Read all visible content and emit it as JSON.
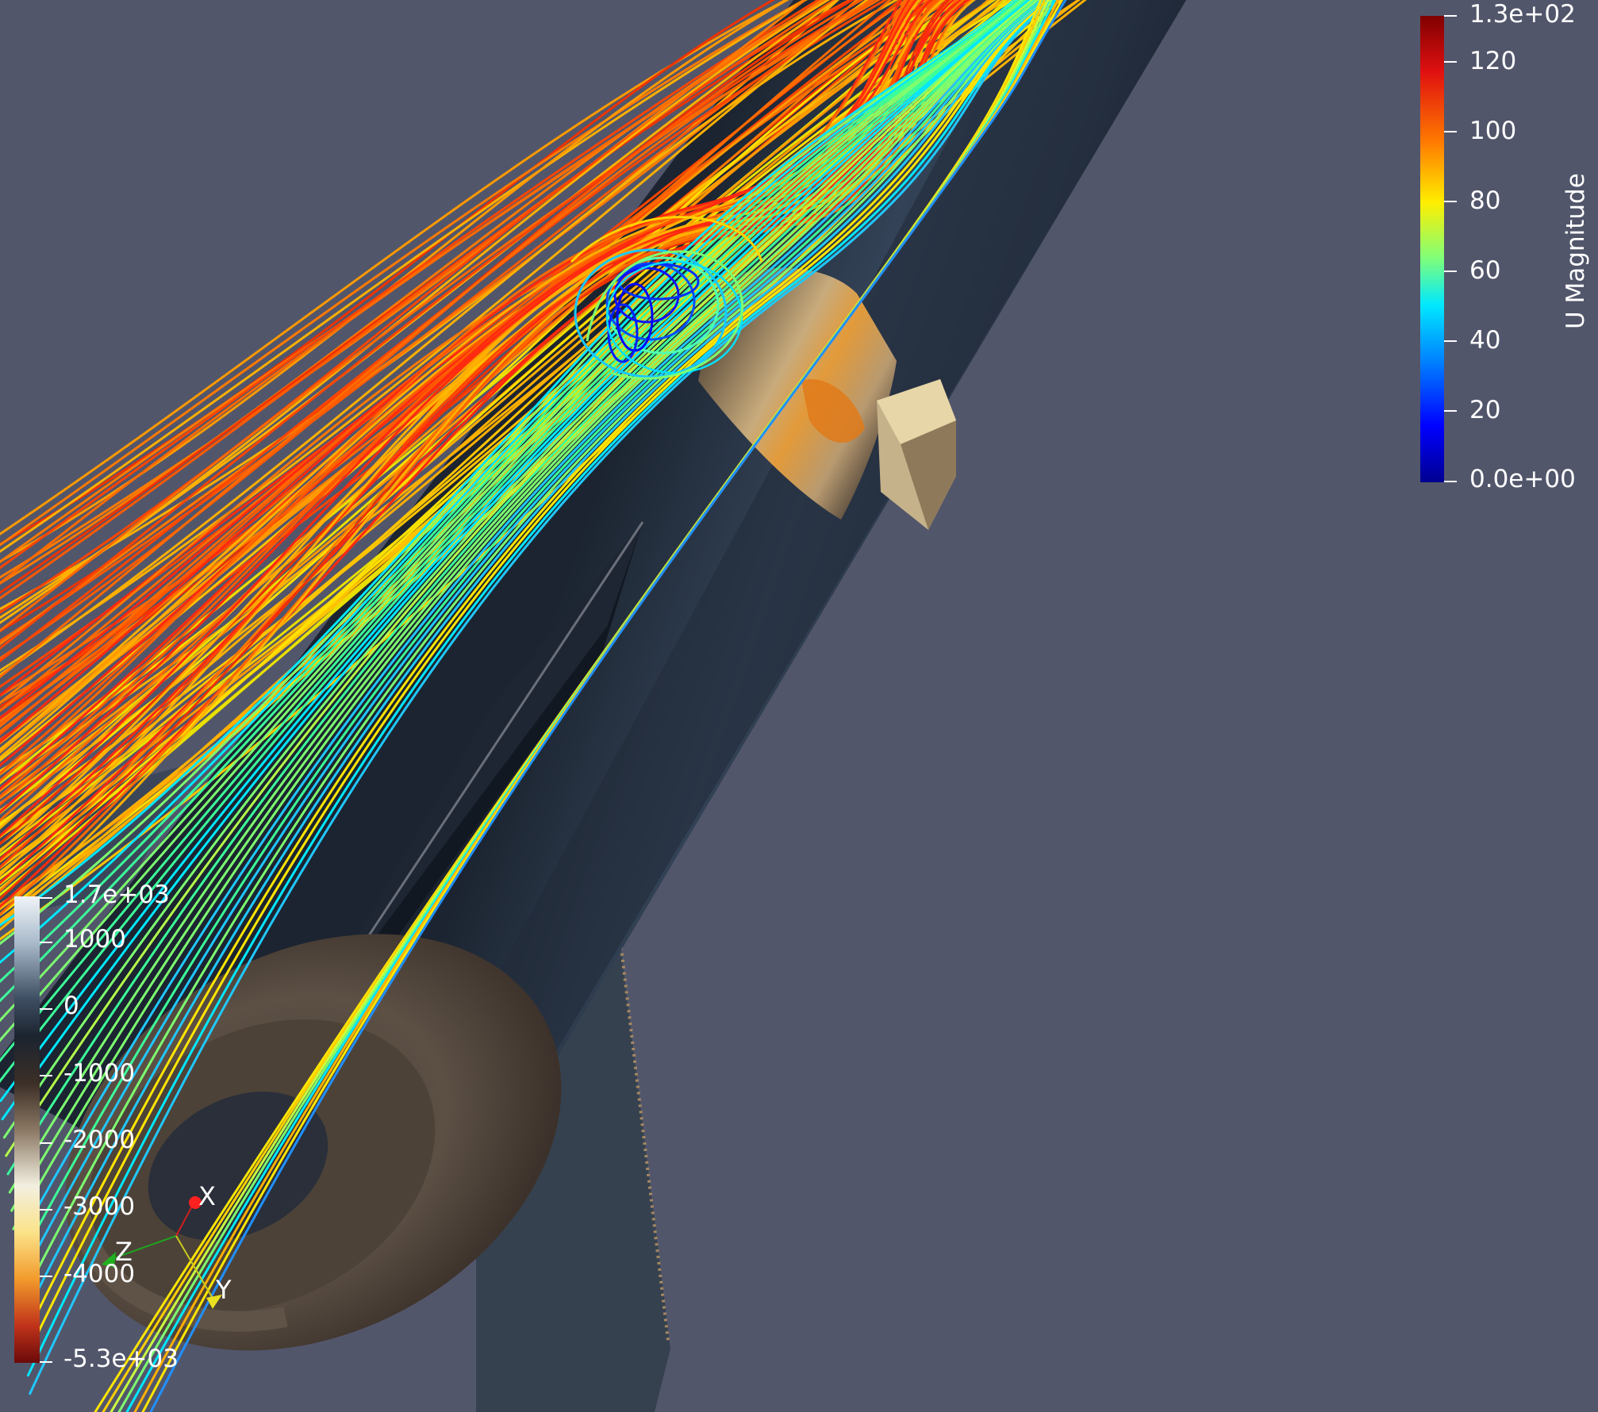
{
  "u_legend": {
    "title": "U Magnitude",
    "ticks": [
      "1.3e+02",
      "120",
      "100",
      "80",
      "60",
      "40",
      "20",
      "0.0e+00"
    ]
  },
  "p_legend": {
    "ticks": [
      "1.7e+03",
      "1000",
      "0",
      "-1000",
      "-2000",
      "-3000",
      "-4000",
      "-5.3e+03"
    ]
  },
  "axes": {
    "x": "X",
    "y": "Y",
    "z": "Z"
  },
  "colors": {
    "background": "#52566b",
    "jet_top": "#800000",
    "jet_bottom": "#00008f"
  }
}
